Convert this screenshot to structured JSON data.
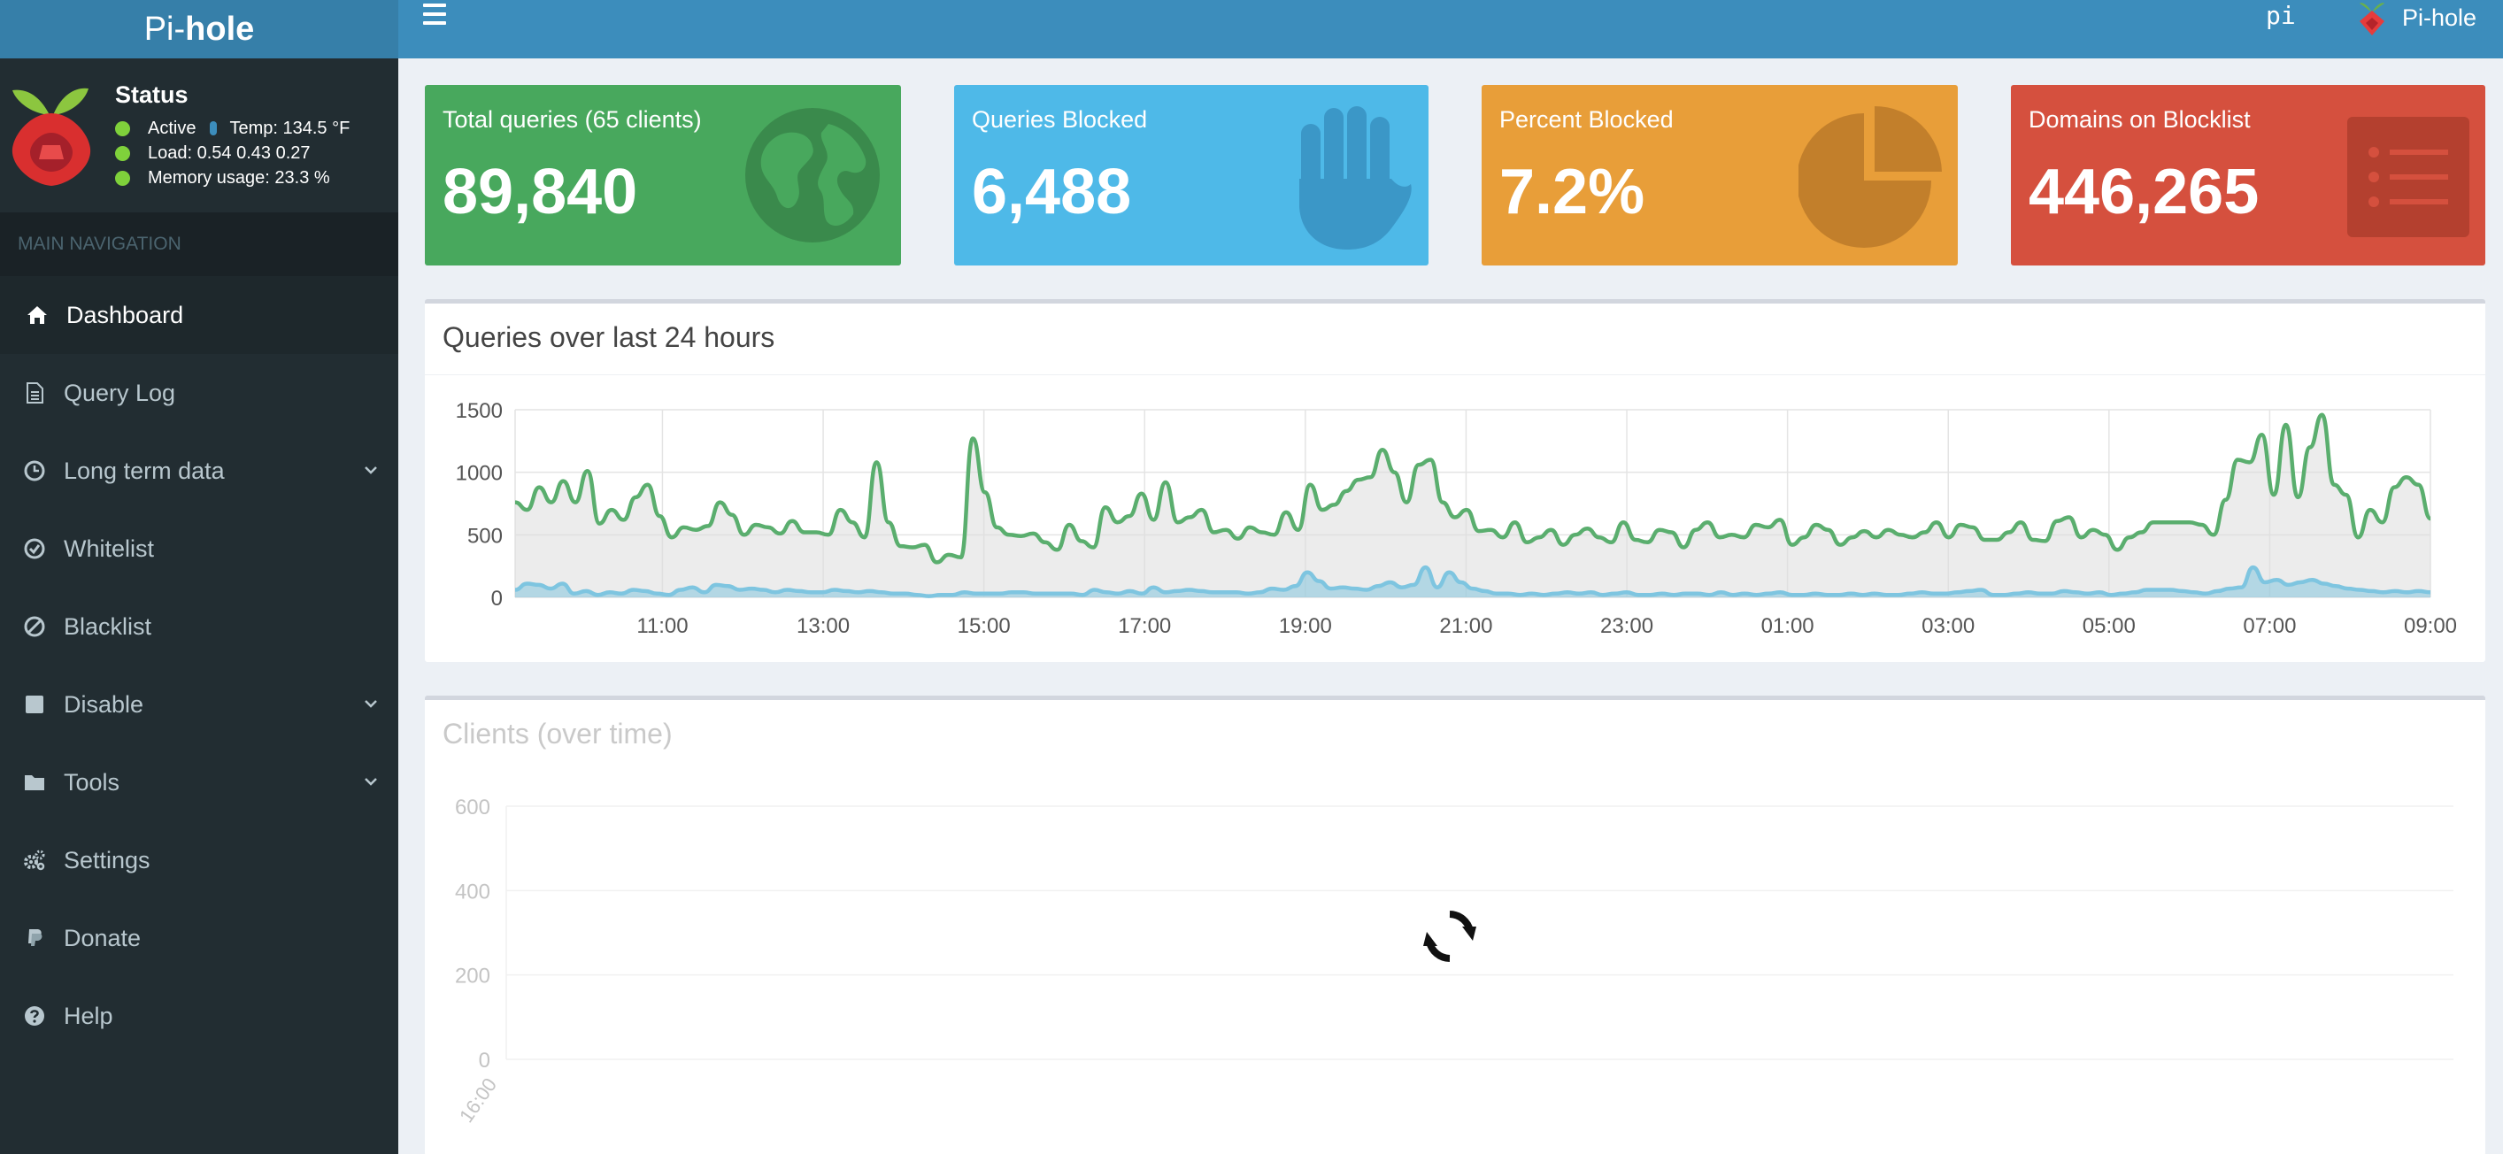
{
  "header": {
    "logo_light": "Pi-",
    "logo_bold": "hole",
    "hostname": "pi",
    "user_label": "Pi-hole"
  },
  "sidebar": {
    "status": {
      "title": "Status",
      "active": "Active",
      "temp": "Temp: 134.5 °F",
      "load": "Load:  0.54  0.43  0.27",
      "memory": "Memory usage:  23.3 %"
    },
    "nav_header": "MAIN NAVIGATION",
    "items": [
      {
        "label": "Dashboard",
        "icon": "home-icon",
        "active": true
      },
      {
        "label": "Query Log",
        "icon": "file-icon"
      },
      {
        "label": "Long term data",
        "icon": "clock-icon",
        "has_submenu": true
      },
      {
        "label": "Whitelist",
        "icon": "check-circle-icon"
      },
      {
        "label": "Blacklist",
        "icon": "ban-icon"
      },
      {
        "label": "Disable",
        "icon": "stop-icon",
        "has_submenu": true
      },
      {
        "label": "Tools",
        "icon": "folder-icon",
        "has_submenu": true
      },
      {
        "label": "Settings",
        "icon": "gears-icon"
      },
      {
        "label": "Donate",
        "icon": "paypal-icon"
      },
      {
        "label": "Help",
        "icon": "question-circle-icon"
      }
    ]
  },
  "stats": [
    {
      "label": "Total queries (65 clients)",
      "value": "89,840",
      "color": "#48a85d",
      "icon": "globe-icon"
    },
    {
      "label": "Queries Blocked",
      "value": "6,488",
      "color": "#4eb9e8",
      "icon": "hand-icon"
    },
    {
      "label": "Percent Blocked",
      "value": "7.2%",
      "color": "#e89e39",
      "icon": "pie-chart-icon"
    },
    {
      "label": "Domains on Blocklist",
      "value": "446,265",
      "color": "#d5503e",
      "icon": "list-icon"
    }
  ],
  "queries_chart": {
    "title": "Queries over last 24 hours"
  },
  "clients_chart": {
    "title": "Clients (over time)",
    "loading_icon": "refresh-icon"
  },
  "chart_data": [
    {
      "type": "area",
      "title": "Queries over last 24 hours",
      "ylim": [
        0,
        1500
      ],
      "y_ticks": [
        0,
        500,
        1000,
        1500
      ],
      "x_ticks": [
        "11:00",
        "13:00",
        "15:00",
        "17:00",
        "19:00",
        "21:00",
        "23:00",
        "01:00",
        "03:00",
        "05:00",
        "07:00",
        "09:00"
      ],
      "grid": true,
      "x_start": "09:10",
      "x_end": "09:00",
      "series": [
        {
          "color": "#5aae6e",
          "values": [
            760,
            700,
            880,
            760,
            930,
            760,
            1010,
            590,
            700,
            620,
            800,
            900,
            650,
            480,
            560,
            540,
            570,
            760,
            660,
            500,
            580,
            560,
            510,
            610,
            520,
            520,
            500,
            700,
            600,
            480,
            1080,
            600,
            410,
            400,
            420,
            280,
            340,
            320,
            1270,
            840,
            560,
            500,
            490,
            510,
            440,
            380,
            580,
            450,
            400,
            720,
            600,
            650,
            830,
            620,
            920,
            600,
            640,
            700,
            520,
            540,
            470,
            560,
            520,
            500,
            680,
            540,
            900,
            700,
            740,
            850,
            940,
            960,
            1180,
            1000,
            760,
            1060,
            1100,
            760,
            640,
            700,
            530,
            540,
            480,
            600,
            440,
            480,
            540,
            420,
            500,
            550,
            480,
            440,
            600,
            460,
            440,
            540,
            520,
            400,
            540,
            600,
            480,
            500,
            480,
            580,
            560,
            620,
            420,
            480,
            580,
            540,
            420,
            480,
            530,
            480,
            540,
            500,
            480,
            520,
            600,
            480,
            580,
            560,
            460,
            460,
            520,
            600,
            460,
            450,
            610,
            640,
            480,
            540,
            500,
            380,
            480,
            520,
            600,
            600,
            600,
            600,
            580,
            500,
            780,
            1100,
            1080,
            1300,
            820,
            1380,
            800,
            1200,
            1460,
            900,
            820,
            480,
            700,
            600,
            880,
            960,
            900,
            630
          ]
        },
        {
          "color": "#7ec5e0",
          "values": [
            60,
            110,
            100,
            70,
            110,
            30,
            50,
            20,
            40,
            30,
            60,
            50,
            30,
            20,
            60,
            80,
            40,
            100,
            90,
            60,
            70,
            60,
            40,
            60,
            50,
            40,
            40,
            60,
            50,
            40,
            50,
            40,
            30,
            30,
            20,
            10,
            20,
            20,
            40,
            30,
            30,
            30,
            40,
            40,
            30,
            30,
            30,
            30,
            20,
            60,
            40,
            30,
            50,
            30,
            80,
            40,
            50,
            60,
            50,
            40,
            40,
            40,
            30,
            40,
            70,
            60,
            90,
            200,
            130,
            70,
            80,
            70,
            60,
            90,
            120,
            80,
            100,
            240,
            80,
            200,
            120,
            70,
            50,
            30,
            30,
            20,
            30,
            20,
            30,
            40,
            30,
            40,
            20,
            30,
            40,
            20,
            20,
            30,
            20,
            30,
            30,
            20,
            40,
            20,
            30,
            20,
            30,
            40,
            20,
            20,
            30,
            20,
            20,
            30,
            20,
            30,
            20,
            20,
            30,
            40,
            30,
            30,
            40,
            50,
            60,
            20,
            20,
            30,
            40,
            30,
            30,
            50,
            40,
            30,
            40,
            20,
            30,
            40,
            60,
            60,
            60,
            50,
            40,
            30,
            50,
            70,
            80,
            240,
            120,
            140,
            100,
            120,
            140,
            110,
            90,
            70,
            60,
            50,
            40,
            50,
            40,
            50,
            40
          ]
        }
      ]
    },
    {
      "type": "line",
      "title": "Clients (over time)",
      "ylim": [
        0,
        600
      ],
      "y_ticks": [
        0,
        200,
        400,
        600
      ],
      "x_ticks": [
        "16:00"
      ],
      "grid": true,
      "series": []
    }
  ]
}
